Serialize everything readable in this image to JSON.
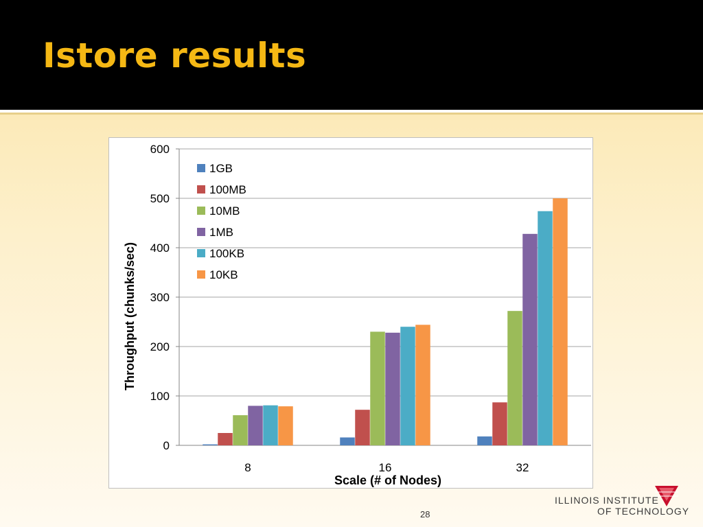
{
  "slide": {
    "title": "Istore results",
    "page_number": "28",
    "logo": {
      "line1": "ILLINOIS INSTITUTE",
      "line2": "OF TECHNOLOGY"
    }
  },
  "colors": {
    "header_bg": "#000000",
    "title": "#f5b814"
  },
  "chart_data": {
    "type": "bar",
    "title": "",
    "xlabel": "Scale (# of Nodes)",
    "ylabel": "Throughput (chunks/sec)",
    "categories": [
      "8",
      "16",
      "32"
    ],
    "ylim": [
      0,
      600
    ],
    "yticks": [
      0,
      100,
      200,
      300,
      400,
      500,
      600
    ],
    "grid": true,
    "legend_position": "top-left",
    "series": [
      {
        "name": "1GB",
        "color": "#4f81bd",
        "values": [
          2,
          16,
          18
        ]
      },
      {
        "name": "100MB",
        "color": "#c0504d",
        "values": [
          25,
          72,
          87
        ]
      },
      {
        "name": "10MB",
        "color": "#9bbb59",
        "values": [
          61,
          230,
          272
        ]
      },
      {
        "name": "1MB",
        "color": "#8064a2",
        "values": [
          80,
          228,
          428
        ]
      },
      {
        "name": "100KB",
        "color": "#4bacc6",
        "values": [
          81,
          240,
          474
        ]
      },
      {
        "name": "10KB",
        "color": "#f79646",
        "values": [
          79,
          244,
          500
        ]
      }
    ]
  }
}
